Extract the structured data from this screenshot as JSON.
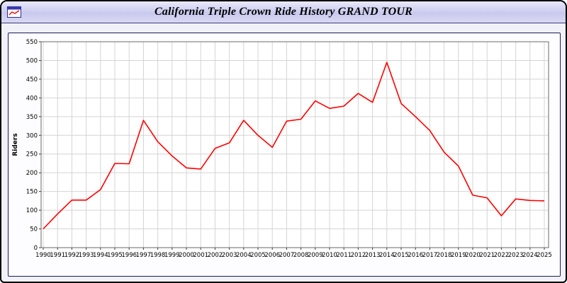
{
  "window": {
    "title": "California Triple Crown Ride History GRAND TOUR",
    "icon": "chart-window-icon"
  },
  "colors": {
    "line": "#ff0000",
    "grid": "#d4d4d4",
    "plot_border": "#6a6a6a",
    "titlebar": "#c9c9ee"
  },
  "chart_data": {
    "type": "line",
    "title": "California Triple Crown Ride History GRAND TOUR",
    "xlabel": "",
    "ylabel": "Riders",
    "ylim": [
      0,
      550
    ],
    "ytick_step": 50,
    "grid": true,
    "legend_position": "none",
    "x": [
      1990,
      1991,
      1992,
      1993,
      1994,
      1995,
      1996,
      1997,
      1998,
      1999,
      2000,
      2001,
      2002,
      2003,
      2004,
      2005,
      2006,
      2007,
      2008,
      2009,
      2010,
      2011,
      2012,
      2013,
      2014,
      2015,
      2016,
      2017,
      2018,
      2019,
      2020,
      2021,
      2022,
      2023,
      2024,
      2025
    ],
    "series": [
      {
        "name": "Riders",
        "color": "#ff0000",
        "values": [
          50,
          90,
          127,
          127,
          155,
          225,
          224,
          340,
          283,
          245,
          213,
          210,
          265,
          280,
          340,
          300,
          268,
          338,
          343,
          392,
          372,
          378,
          412,
          388,
          495,
          385,
          350,
          313,
          255,
          218,
          140,
          133,
          85,
          130,
          126,
          125
        ]
      }
    ]
  }
}
